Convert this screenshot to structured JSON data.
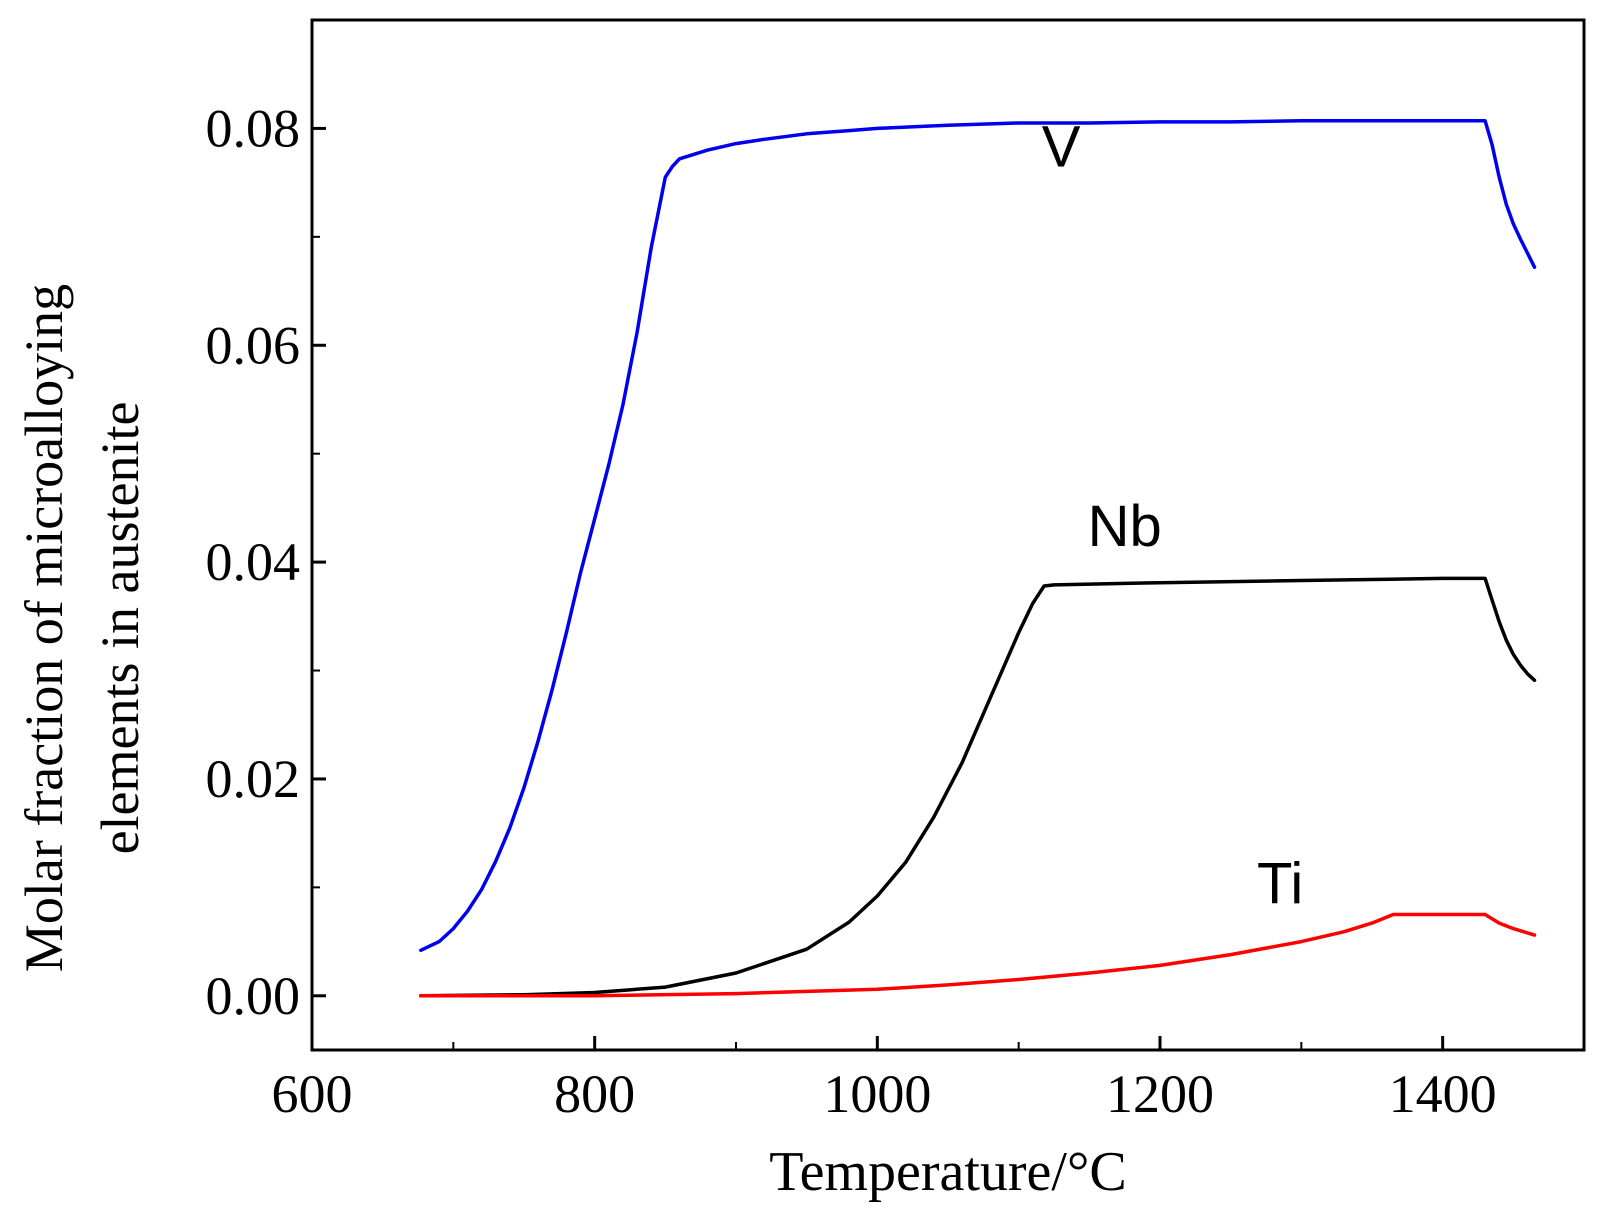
{
  "chart_data": {
    "type": "line",
    "title": "",
    "xlabel": "Temperature/°C",
    "ylabel_line1": "Molar fraction of microalloying",
    "ylabel_line2": "elements in austenite",
    "xlim": [
      600,
      1500
    ],
    "ylim": [
      -0.005,
      0.09
    ],
    "xticks": [
      600,
      800,
      1000,
      1200,
      1400
    ],
    "xtick_labels": [
      "600",
      "800",
      "1000",
      "1200",
      "1400"
    ],
    "yticks": [
      0.0,
      0.02,
      0.04,
      0.06,
      0.08
    ],
    "ytick_labels": [
      "0.00",
      "0.02",
      "0.04",
      "0.06",
      "0.08"
    ],
    "grid": false,
    "series": [
      {
        "name": "V",
        "color": "#0000ee",
        "label_at": [
          1130,
          0.0765
        ],
        "x": [
          677,
          690,
          700,
          710,
          720,
          730,
          740,
          750,
          760,
          770,
          780,
          790,
          800,
          810,
          820,
          830,
          840,
          850,
          855,
          860,
          870,
          880,
          900,
          920,
          950,
          980,
          1000,
          1050,
          1100,
          1150,
          1200,
          1250,
          1300,
          1350,
          1400,
          1430,
          1435,
          1440,
          1445,
          1450,
          1455,
          1460,
          1465
        ],
        "y": [
          0.0042,
          0.005,
          0.0062,
          0.0078,
          0.0098,
          0.0124,
          0.0155,
          0.0192,
          0.0235,
          0.0283,
          0.0335,
          0.039,
          0.044,
          0.049,
          0.0545,
          0.0612,
          0.069,
          0.0755,
          0.0765,
          0.0772,
          0.0776,
          0.078,
          0.0786,
          0.079,
          0.0795,
          0.0798,
          0.08,
          0.0803,
          0.0805,
          0.0805,
          0.0806,
          0.0806,
          0.0807,
          0.0807,
          0.0807,
          0.0807,
          0.0785,
          0.0755,
          0.073,
          0.0712,
          0.0698,
          0.0685,
          0.0672
        ]
      },
      {
        "name": "Nb",
        "color": "#000000",
        "label_at": [
          1175,
          0.0415
        ],
        "x": [
          677,
          750,
          800,
          850,
          900,
          950,
          980,
          1000,
          1020,
          1040,
          1060,
          1080,
          1100,
          1110,
          1118,
          1125,
          1200,
          1300,
          1400,
          1430,
          1435,
          1440,
          1445,
          1450,
          1455,
          1460,
          1465
        ],
        "y": [
          0.0,
          0.0001,
          0.0003,
          0.0008,
          0.0021,
          0.0043,
          0.0068,
          0.0092,
          0.0123,
          0.0165,
          0.0215,
          0.0275,
          0.0335,
          0.0362,
          0.0378,
          0.0379,
          0.0381,
          0.0383,
          0.0385,
          0.0385,
          0.0365,
          0.0345,
          0.0328,
          0.0315,
          0.0305,
          0.0297,
          0.0291
        ]
      },
      {
        "name": "Ti",
        "color": "#ff0000",
        "label_at": [
          1285,
          0.0085
        ],
        "x": [
          677,
          800,
          900,
          1000,
          1050,
          1100,
          1150,
          1200,
          1250,
          1300,
          1330,
          1350,
          1365,
          1400,
          1430,
          1440,
          1450,
          1460,
          1465
        ],
        "y": [
          0.0,
          0.0,
          0.0002,
          0.0006,
          0.001,
          0.0015,
          0.0021,
          0.0028,
          0.0038,
          0.005,
          0.0059,
          0.0067,
          0.0075,
          0.0075,
          0.0075,
          0.0067,
          0.0062,
          0.0058,
          0.0056
        ]
      }
    ]
  }
}
